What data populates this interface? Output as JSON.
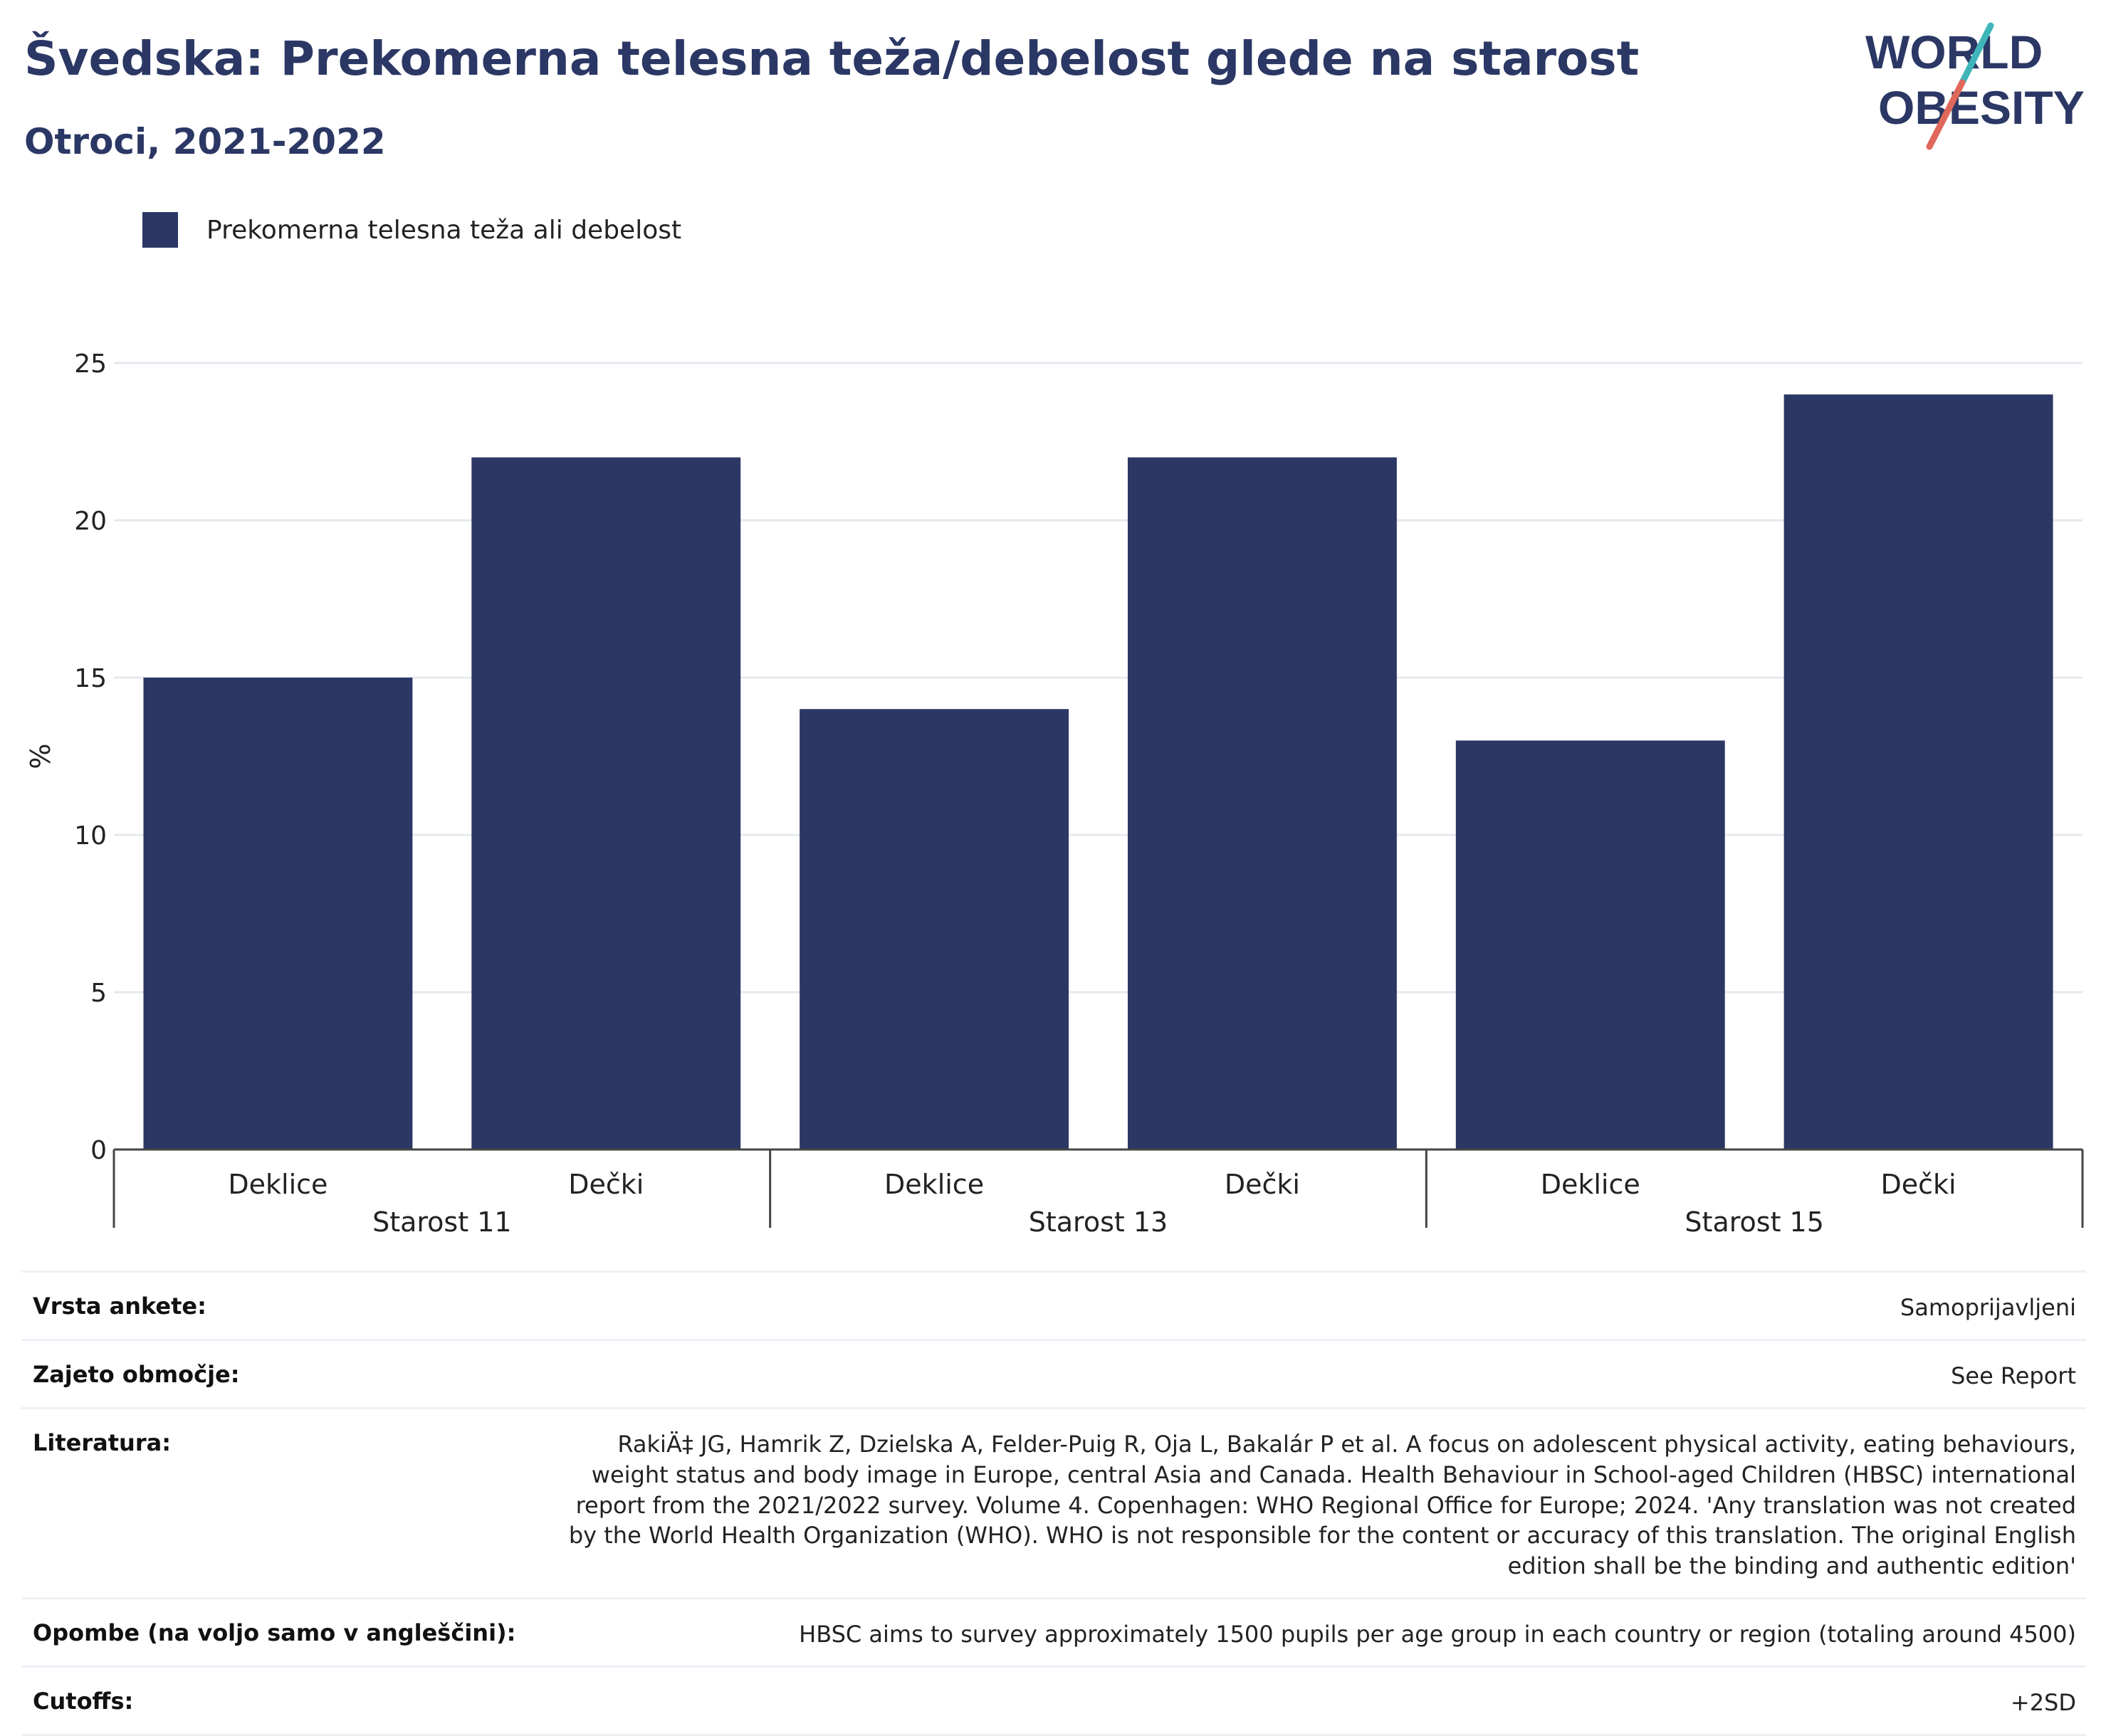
{
  "header": {
    "title": "Švedska: Prekomerna telesna teža/debelost glede na starost",
    "subtitle": "Otroci, 2021-2022"
  },
  "logo": {
    "line1": "WORLD",
    "line2": "OBESITY",
    "slash_colors": [
      "#3fb5b9",
      "#e0685b"
    ],
    "text_color": "#2b3764"
  },
  "legend": {
    "label": "Prekomerna telesna teža ali debelost",
    "color": "#2b3764"
  },
  "chart_data": {
    "type": "bar",
    "ylabel": "%",
    "ylim": [
      0,
      25
    ],
    "yticks": [
      0,
      5,
      10,
      15,
      20,
      25
    ],
    "grid": true,
    "bar_color": "#2b3764",
    "groups": [
      "Starost 11",
      "Starost 13",
      "Starost 15"
    ],
    "categories": [
      "Deklice",
      "Dečki",
      "Deklice",
      "Dečki",
      "Deklice",
      "Dečki"
    ],
    "series": [
      {
        "name": "Prekomerna telesna teža ali debelost",
        "values": [
          15,
          22,
          14,
          22,
          13,
          24
        ]
      }
    ]
  },
  "info": {
    "survey_type": {
      "label": "Vrsta ankete:",
      "value": "Samoprijavljeni"
    },
    "coverage": {
      "label": "Zajeto območje:",
      "value": "See Report"
    },
    "literature": {
      "label": "Literatura:",
      "value": "RakiÄ‡ JG, Hamrik Z, Dzielska A, Felder-Puig R, Oja L, Bakalár P et al. A focus on adolescent physical activity, eating behaviours, weight status and body image in Europe, central Asia and Canada. Health Behaviour in School-aged Children (HBSC) international report from the 2021/2022 survey. Volume 4. Copenhagen: WHO Regional Office for Europe; 2024. 'Any translation was not created by the World Health Organization (WHO). WHO is not responsible for the content or accuracy of this translation. The original English edition shall be the binding and authentic edition'"
    },
    "notes": {
      "label": "Opombe (na voljo samo v angleščini):",
      "value": "HBSC aims to survey approximately 1500 pupils per age group in each country or region (totaling around 4500)"
    },
    "cutoffs": {
      "label": "Cutoffs:",
      "value": "+2SD"
    }
  }
}
